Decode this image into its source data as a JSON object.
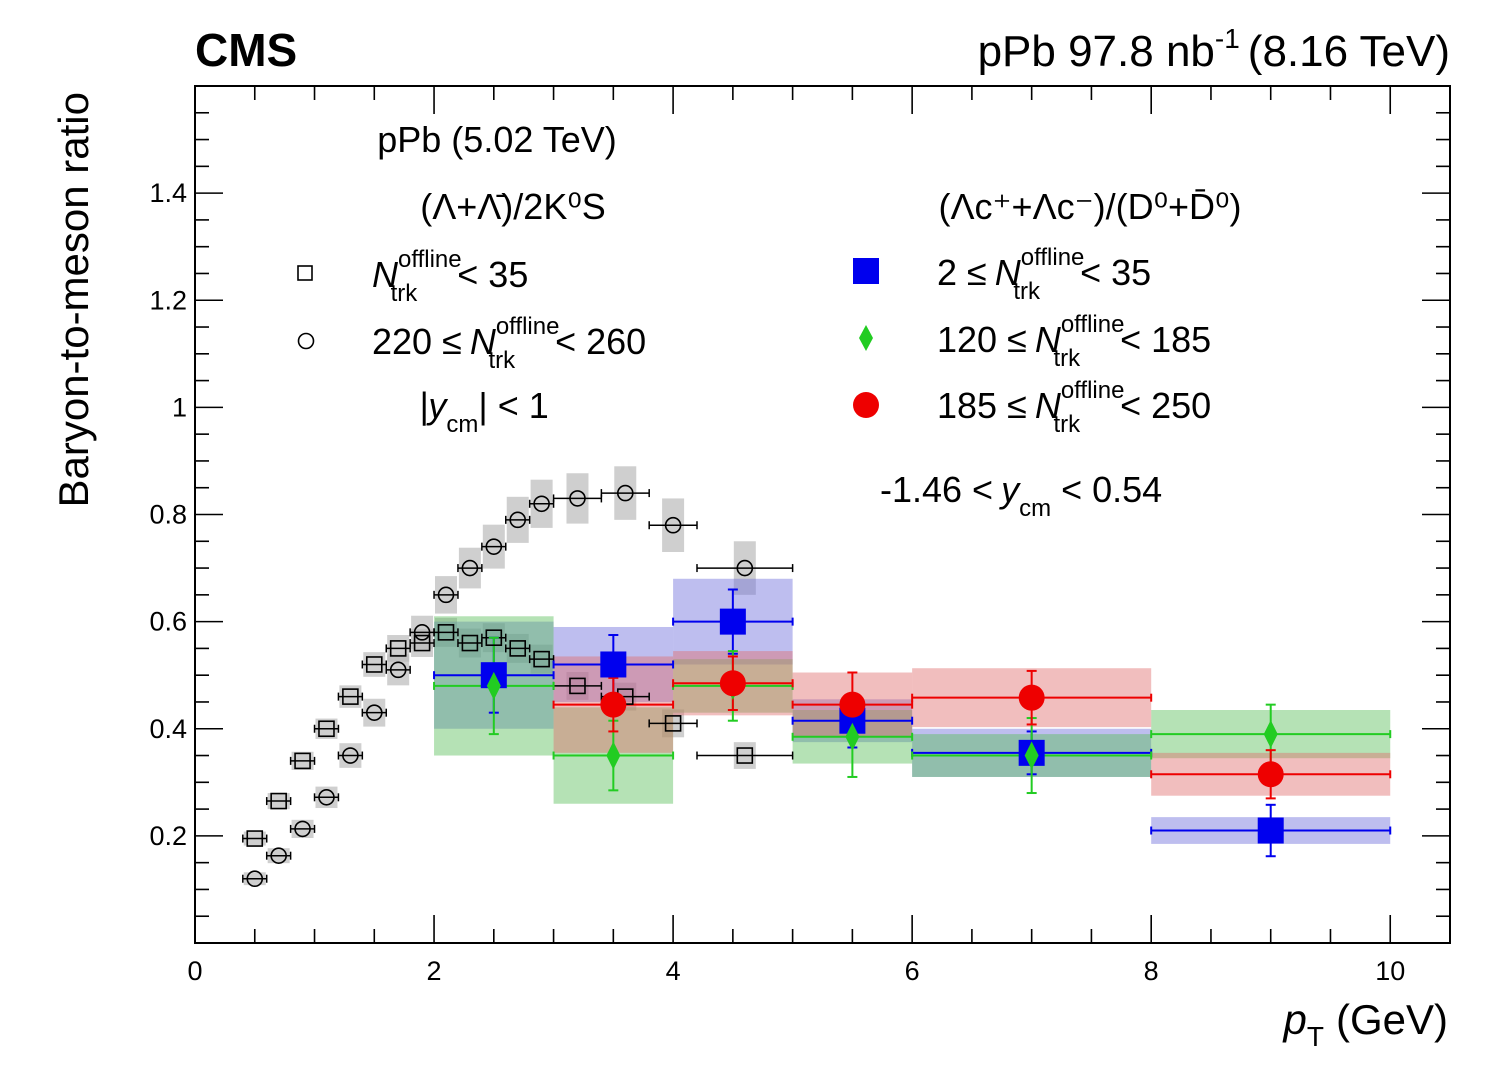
{
  "chart_data": {
    "type": "scatter",
    "experiment_label": "CMS",
    "lumi_label": {
      "collision": "pPb 97.8 nb",
      "lumi_exp": "-1",
      "energy": "(8.16 TeV)"
    },
    "xlabel": {
      "symbol": "p",
      "sub": "T",
      "unit": "(GeV)"
    },
    "ylabel": "Baryon-to-meson ratio",
    "xlim": [
      0,
      10.5
    ],
    "ylim": [
      0.0,
      1.6
    ],
    "x_ticks": [
      0,
      2,
      4,
      6,
      8,
      10
    ],
    "x_tick_labels": [
      "0",
      "2",
      "4",
      "6",
      "8",
      "10"
    ],
    "y_ticks": [
      0.2,
      0.4,
      0.6,
      0.8,
      1.0,
      1.2,
      1.4
    ],
    "y_tick_labels": [
      "0.2",
      "0.4",
      "0.6",
      "0.8",
      "1",
      "1.2",
      "1.4"
    ],
    "grid": false,
    "legend_left": {
      "header": "pPb (5.02 TeV)",
      "ratio": "(Λ+Λ̄)/2K⁰S",
      "entries": [
        {
          "name": "N_trk^offline < 35",
          "prefix": "",
          "suffix": "< 35"
        },
        {
          "name": "220 ≤ N_trk^offline < 260",
          "prefix": "220 ≤",
          "suffix": "< 260"
        }
      ],
      "rapidity": {
        "pre": "|y",
        "sub": "cm",
        "post": "| < 1"
      }
    },
    "legend_right": {
      "ratio": "(Λc⁺+Λc⁻)/(D⁰+D̄⁰)",
      "entries": [
        {
          "name": "2 ≤ N_trk^offline < 35",
          "prefix": "2 ≤",
          "suffix": "< 35"
        },
        {
          "name": "120 ≤ N_trk^offline < 185",
          "prefix": "120 ≤",
          "suffix": "< 185"
        },
        {
          "name": "185 ≤ N_trk^offline < 250",
          "prefix": "185 ≤",
          "suffix": "< 250"
        }
      ],
      "rapidity": {
        "pre": "-1.46 <",
        "var": "y",
        "sub": "cm",
        "post": "< 0.54"
      }
    },
    "series": [
      {
        "name": "Lambda/2K0S Ntrk<35 (pPb 5.02 TeV)",
        "marker": "open-square",
        "color": "#000000",
        "syst_color": "#bbbbbb",
        "points": [
          {
            "x": 0.5,
            "y": 0.195,
            "xerr": 0.1,
            "syst": 0.013
          },
          {
            "x": 0.7,
            "y": 0.265,
            "xerr": 0.1,
            "syst": 0.015
          },
          {
            "x": 0.9,
            "y": 0.34,
            "xerr": 0.1,
            "syst": 0.017
          },
          {
            "x": 1.1,
            "y": 0.4,
            "xerr": 0.1,
            "syst": 0.019
          },
          {
            "x": 1.3,
            "y": 0.46,
            "xerr": 0.1,
            "syst": 0.021
          },
          {
            "x": 1.5,
            "y": 0.52,
            "xerr": 0.1,
            "syst": 0.023
          },
          {
            "x": 1.7,
            "y": 0.55,
            "xerr": 0.1,
            "syst": 0.025
          },
          {
            "x": 1.9,
            "y": 0.56,
            "xerr": 0.1,
            "syst": 0.026
          },
          {
            "x": 2.1,
            "y": 0.58,
            "xerr": 0.1,
            "syst": 0.027
          },
          {
            "x": 2.3,
            "y": 0.56,
            "xerr": 0.1,
            "syst": 0.027
          },
          {
            "x": 2.5,
            "y": 0.57,
            "xerr": 0.1,
            "syst": 0.027
          },
          {
            "x": 2.7,
            "y": 0.55,
            "xerr": 0.1,
            "syst": 0.027
          },
          {
            "x": 2.9,
            "y": 0.53,
            "xerr": 0.1,
            "syst": 0.027
          },
          {
            "x": 3.2,
            "y": 0.48,
            "xerr": 0.2,
            "syst": 0.026
          },
          {
            "x": 3.6,
            "y": 0.46,
            "xerr": 0.2,
            "syst": 0.026
          },
          {
            "x": 4.0,
            "y": 0.41,
            "xerr": 0.2,
            "syst": 0.026
          },
          {
            "x": 4.6,
            "y": 0.35,
            "xerr": 0.4,
            "syst": 0.025
          }
        ]
      },
      {
        "name": "Lambda/2K0S 220<=Ntrk<260 (pPb 5.02 TeV)",
        "marker": "open-circle",
        "color": "#000000",
        "syst_color": "#bbbbbb",
        "points": [
          {
            "x": 0.5,
            "y": 0.12,
            "xerr": 0.1,
            "syst": 0.012
          },
          {
            "x": 0.7,
            "y": 0.163,
            "xerr": 0.1,
            "syst": 0.014
          },
          {
            "x": 0.9,
            "y": 0.213,
            "xerr": 0.1,
            "syst": 0.017
          },
          {
            "x": 1.1,
            "y": 0.272,
            "xerr": 0.1,
            "syst": 0.02
          },
          {
            "x": 1.3,
            "y": 0.35,
            "xerr": 0.1,
            "syst": 0.023
          },
          {
            "x": 1.5,
            "y": 0.43,
            "xerr": 0.1,
            "syst": 0.026
          },
          {
            "x": 1.7,
            "y": 0.51,
            "xerr": 0.1,
            "syst": 0.029
          },
          {
            "x": 1.9,
            "y": 0.58,
            "xerr": 0.1,
            "syst": 0.031
          },
          {
            "x": 2.1,
            "y": 0.65,
            "xerr": 0.1,
            "syst": 0.035
          },
          {
            "x": 2.3,
            "y": 0.7,
            "xerr": 0.1,
            "syst": 0.038
          },
          {
            "x": 2.5,
            "y": 0.74,
            "xerr": 0.1,
            "syst": 0.041
          },
          {
            "x": 2.7,
            "y": 0.79,
            "xerr": 0.1,
            "syst": 0.043
          },
          {
            "x": 2.9,
            "y": 0.82,
            "xerr": 0.1,
            "syst": 0.045
          },
          {
            "x": 3.2,
            "y": 0.83,
            "xerr": 0.2,
            "syst": 0.047
          },
          {
            "x": 3.6,
            "y": 0.84,
            "xerr": 0.2,
            "syst": 0.05
          },
          {
            "x": 4.0,
            "y": 0.78,
            "xerr": 0.2,
            "syst": 0.05
          },
          {
            "x": 4.6,
            "y": 0.7,
            "xerr": 0.4,
            "syst": 0.05
          }
        ]
      },
      {
        "name": "Lambda_c/D0 2<=Ntrk<35",
        "marker": "filled-square",
        "color": "#0000ee",
        "syst_color": "rgba(110,110,220,0.45)",
        "points": [
          {
            "x": 2.5,
            "y": 0.5,
            "xlo": 2,
            "xhi": 3,
            "stat": 0.07,
            "syst_lo": 0.1,
            "syst_hi": 0.1
          },
          {
            "x": 3.5,
            "y": 0.52,
            "xlo": 3,
            "xhi": 4,
            "stat": 0.055,
            "syst_lo": 0.07,
            "syst_hi": 0.07
          },
          {
            "x": 4.5,
            "y": 0.6,
            "xlo": 4,
            "xhi": 5,
            "stat": 0.06,
            "syst_lo": 0.08,
            "syst_hi": 0.08
          },
          {
            "x": 5.5,
            "y": 0.415,
            "xlo": 5,
            "xhi": 6,
            "stat": 0.05,
            "syst_lo": 0.04,
            "syst_hi": 0.04
          },
          {
            "x": 7.0,
            "y": 0.355,
            "xlo": 6,
            "xhi": 8,
            "stat": 0.04,
            "syst_lo": 0.045,
            "syst_hi": 0.045
          },
          {
            "x": 9.0,
            "y": 0.21,
            "xlo": 8,
            "xhi": 10,
            "stat": 0.048,
            "syst_lo": 0.025,
            "syst_hi": 0.025
          }
        ]
      },
      {
        "name": "Lambda_c/D0 120<=Ntrk<185",
        "marker": "filled-diamond",
        "color": "#22cc22",
        "syst_color": "rgba(90,190,90,0.45)",
        "points": [
          {
            "x": 2.5,
            "y": 0.48,
            "xlo": 2,
            "xhi": 3,
            "stat": 0.09,
            "syst_lo": 0.13,
            "syst_hi": 0.13
          },
          {
            "x": 3.5,
            "y": 0.35,
            "xlo": 3,
            "xhi": 4,
            "stat": 0.065,
            "syst_lo": 0.09,
            "syst_hi": 0.09
          },
          {
            "x": 4.5,
            "y": 0.48,
            "xlo": 4,
            "xhi": 5,
            "stat": 0.065,
            "syst_lo": 0.05,
            "syst_hi": 0.05
          },
          {
            "x": 5.5,
            "y": 0.385,
            "xlo": 5,
            "xhi": 6,
            "stat": 0.075,
            "syst_lo": 0.05,
            "syst_hi": 0.05
          },
          {
            "x": 7.0,
            "y": 0.35,
            "xlo": 6,
            "xhi": 8,
            "stat": 0.07,
            "syst_lo": 0.04,
            "syst_hi": 0.04
          },
          {
            "x": 9.0,
            "y": 0.39,
            "xlo": 8,
            "xhi": 10,
            "stat": 0.055,
            "syst_lo": 0.045,
            "syst_hi": 0.045
          }
        ]
      },
      {
        "name": "Lambda_c/D0 185<=Ntrk<250",
        "marker": "filled-circle",
        "color": "#ee0000",
        "syst_color": "rgba(225,110,110,0.45)",
        "points": [
          {
            "x": 3.5,
            "y": 0.445,
            "xlo": 3,
            "xhi": 4,
            "stat": 0.05,
            "syst_lo": 0.09,
            "syst_hi": 0.09
          },
          {
            "x": 4.5,
            "y": 0.485,
            "xlo": 4,
            "xhi": 5,
            "stat": 0.05,
            "syst_lo": 0.06,
            "syst_hi": 0.06
          },
          {
            "x": 5.5,
            "y": 0.445,
            "xlo": 5,
            "xhi": 6,
            "stat": 0.06,
            "syst_lo": 0.06,
            "syst_hi": 0.06
          },
          {
            "x": 7.0,
            "y": 0.458,
            "xlo": 6,
            "xhi": 8,
            "stat": 0.05,
            "syst_lo": 0.055,
            "syst_hi": 0.055
          },
          {
            "x": 9.0,
            "y": 0.315,
            "xlo": 8,
            "xhi": 10,
            "stat": 0.045,
            "syst_lo": 0.04,
            "syst_hi": 0.04
          }
        ]
      }
    ]
  }
}
